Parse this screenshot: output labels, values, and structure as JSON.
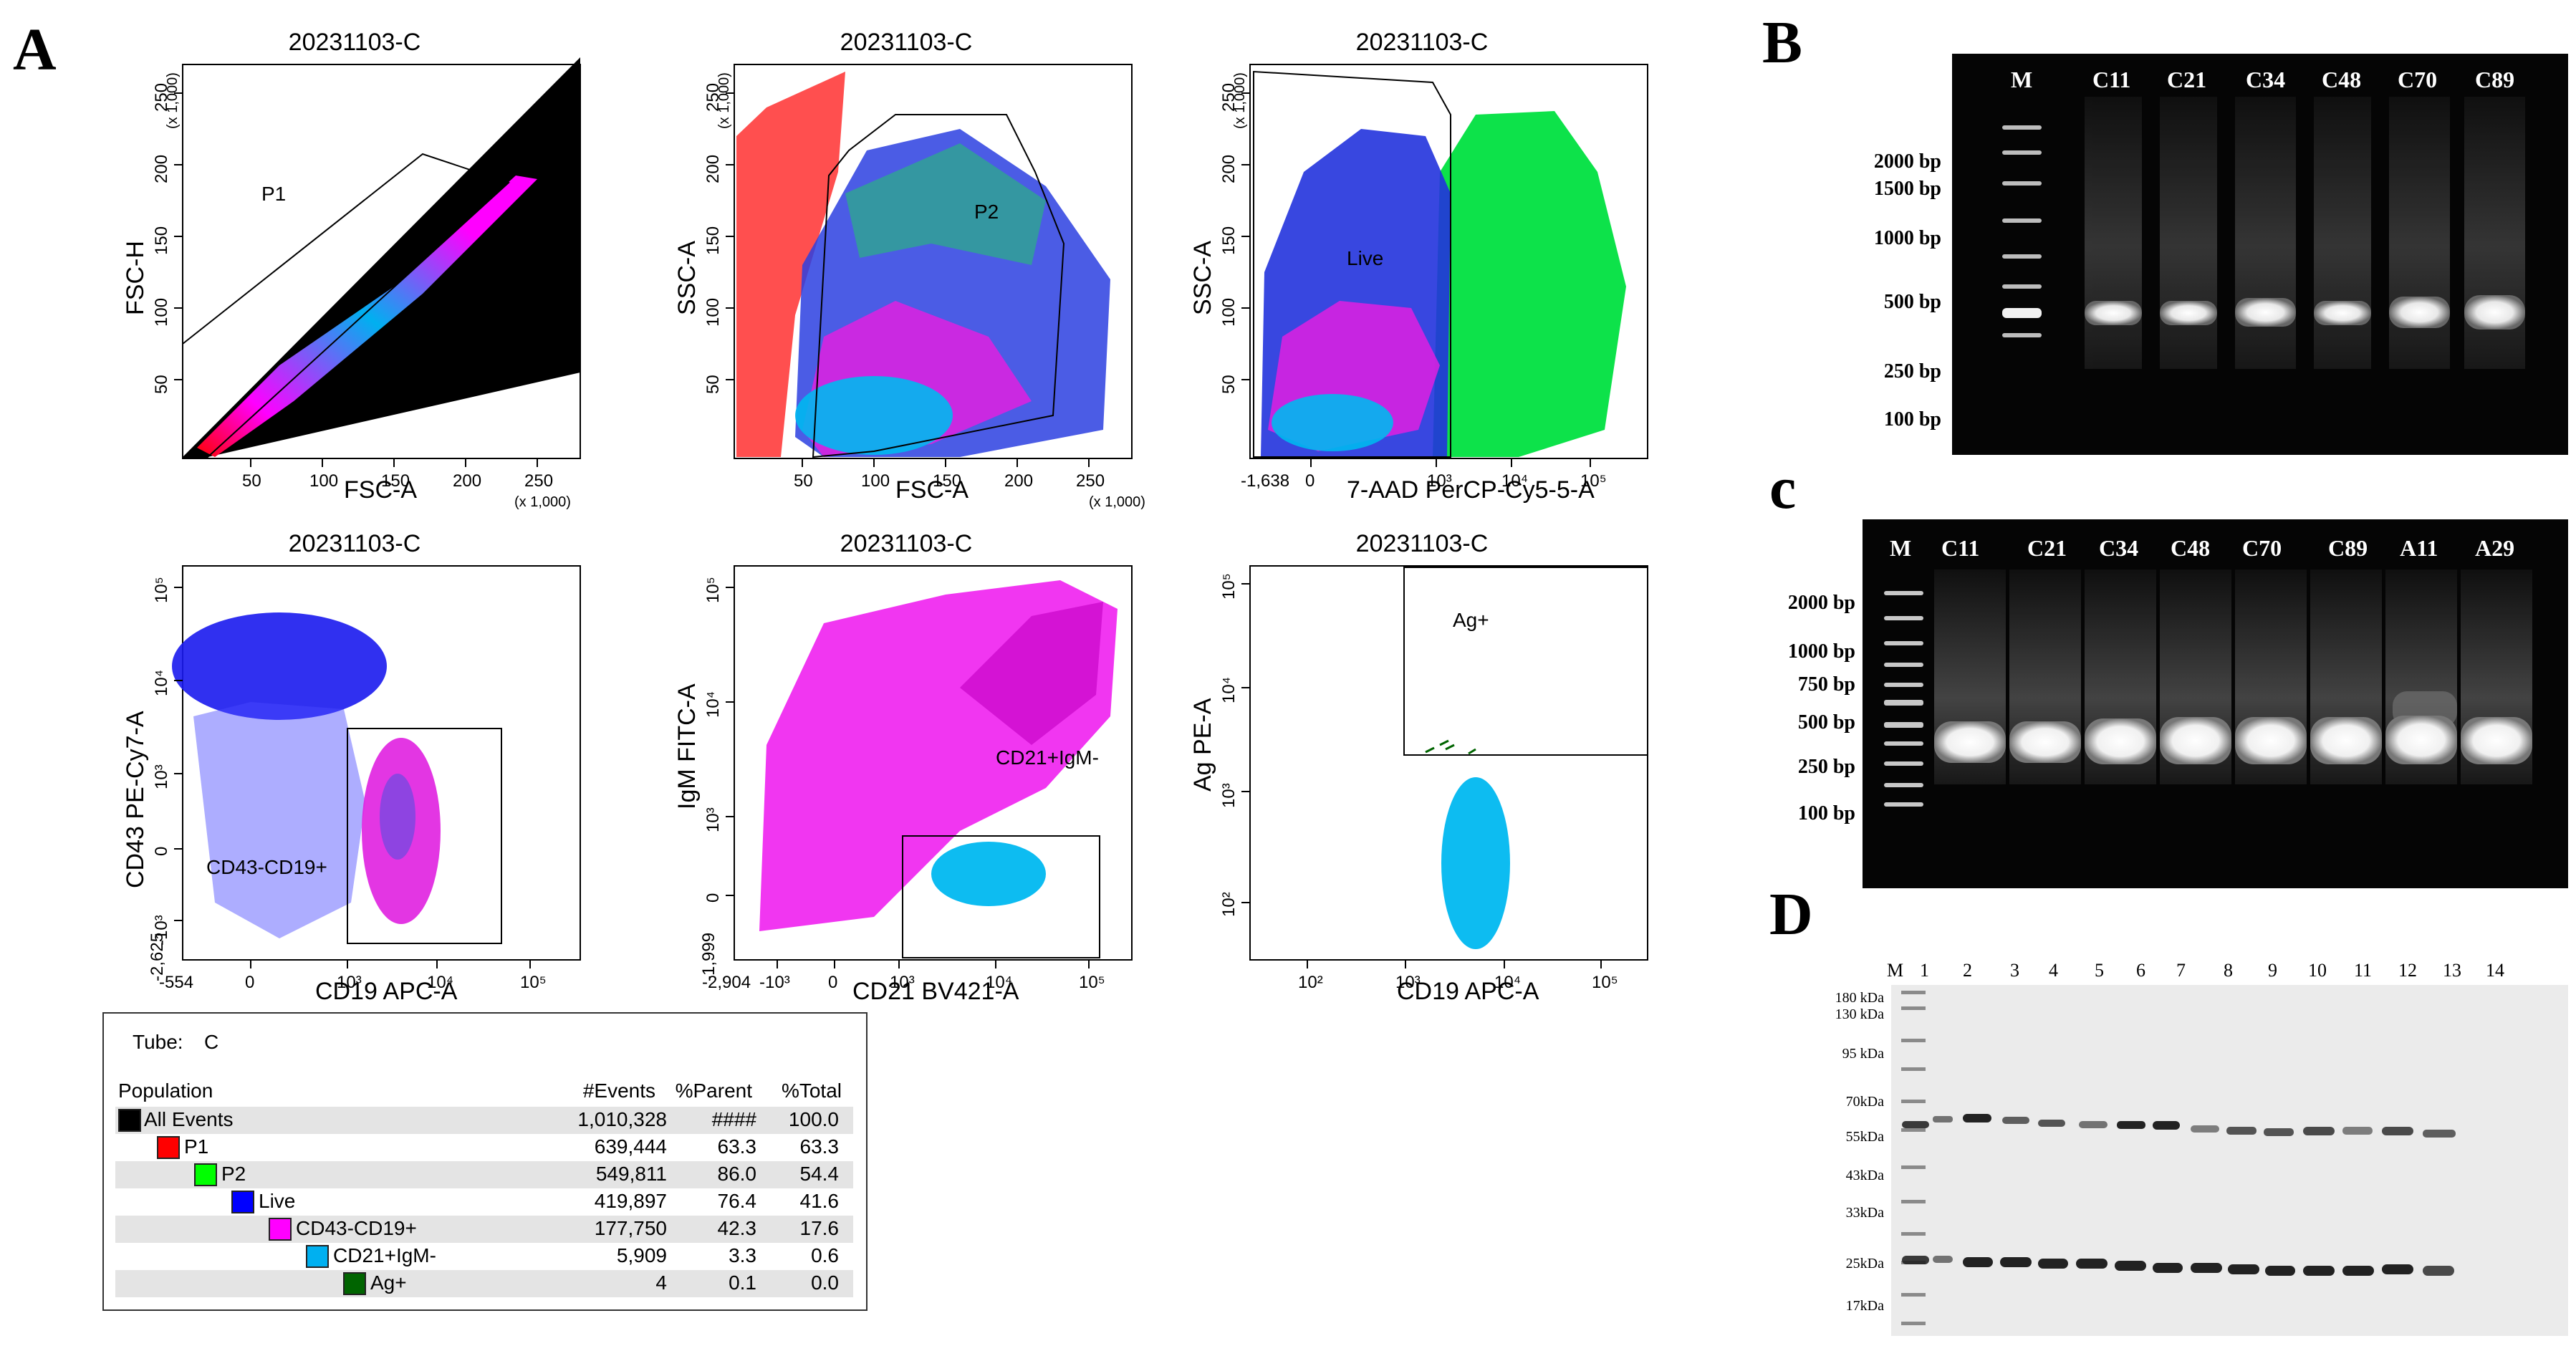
{
  "panel_letters": {
    "a": "A",
    "b": "B",
    "c": "c",
    "d": "D"
  },
  "plots": [
    {
      "title": "20231103-C",
      "xlabel": "FSC-A",
      "ylabel": "FSC-H",
      "xticks": [
        "50",
        "100",
        "150",
        "200",
        "250"
      ],
      "yticks": [
        "50",
        "100",
        "150",
        "200",
        "250"
      ],
      "xunit": "(x 1,000)",
      "yunit": "(x 1,000)",
      "gate": "P1"
    },
    {
      "title": "20231103-C",
      "xlabel": "FSC-A",
      "ylabel": "SSC-A",
      "xticks": [
        "50",
        "100",
        "150",
        "200",
        "250"
      ],
      "yticks": [
        "50",
        "100",
        "150",
        "200",
        "250"
      ],
      "xunit": "(x 1,000)",
      "yunit": "(x 1,000)",
      "gate": "P2"
    },
    {
      "title": "20231103-C",
      "xlabel": "7-AAD PerCP-Cy5-5-A",
      "ylabel": "SSC-A",
      "xticks": [
        "-1,638",
        "0",
        "10³",
        "10⁴",
        "10⁵"
      ],
      "yticks": [
        "50",
        "100",
        "150",
        "200",
        "250"
      ],
      "yunit": "(x 1,000)",
      "gate": "Live"
    },
    {
      "title": "20231103-C",
      "xlabel": "CD19 APC-A",
      "ylabel": "CD43 PE-Cy7-A",
      "xticks": [
        "-554",
        "0",
        "10³",
        "10⁴",
        "10⁵"
      ],
      "yticks": [
        "-2,625",
        "-10³",
        "0",
        "10³",
        "10⁴",
        "10⁵"
      ],
      "gate": "CD43-CD19+"
    },
    {
      "title": "20231103-C",
      "xlabel": "CD21 BV421-A",
      "ylabel": "IgM FITC-A",
      "xticks": [
        "-2,904",
        "-10³",
        "0",
        "10³",
        "10⁴",
        "10⁵"
      ],
      "yticks": [
        "-1,999",
        "0",
        "10³",
        "10⁴",
        "10⁵"
      ],
      "gate": "CD21+IgM-"
    },
    {
      "title": "20231103-C",
      "xlabel": "CD19 APC-A",
      "ylabel": "Ag PE-A",
      "xticks": [
        "10²",
        "10³",
        "10⁴",
        "10⁵"
      ],
      "yticks": [
        "10²",
        "10³",
        "10⁴",
        "10⁵"
      ],
      "gate": "Ag+"
    }
  ],
  "table": {
    "tube_label": "Tube:",
    "tube_value": "C",
    "headers": {
      "population": "Population",
      "events": "#Events",
      "parent": "%Parent",
      "total": "%Total"
    },
    "rows": [
      {
        "name": "All Events",
        "events": "1,010,328",
        "parent": "####",
        "total": "100.0",
        "color": "#000000"
      },
      {
        "name": "P1",
        "events": "639,444",
        "parent": "63.3",
        "total": "63.3",
        "color": "#ff0000"
      },
      {
        "name": "P2",
        "events": "549,811",
        "parent": "86.0",
        "total": "54.4",
        "color": "#00ff00"
      },
      {
        "name": "Live",
        "events": "419,897",
        "parent": "76.4",
        "total": "41.6",
        "color": "#0000ff"
      },
      {
        "name": "CD43-CD19+",
        "events": "177,750",
        "parent": "42.3",
        "total": "17.6",
        "color": "#ff00ff"
      },
      {
        "name": "CD21+IgM-",
        "events": "5,909",
        "parent": "3.3",
        "total": "0.6",
        "color": "#00b0f0"
      },
      {
        "name": "Ag+",
        "events": "4",
        "parent": "0.1",
        "total": "0.0",
        "color": "#006400"
      }
    ]
  },
  "gel_b": {
    "lanes": [
      "M",
      "C11",
      "C21",
      "C34",
      "C48",
      "C70",
      "C89"
    ],
    "markers": [
      "2000 bp",
      "1500 bp",
      "1000 bp",
      "500 bp",
      "250 bp",
      "100 bp"
    ]
  },
  "gel_c": {
    "lanes": [
      "M",
      "C11",
      "C21",
      "C34",
      "C48",
      "C70",
      "C89",
      "A11",
      "A29"
    ],
    "markers": [
      "2000 bp",
      "1000 bp",
      "750 bp",
      "500 bp",
      "250 bp",
      "100 bp"
    ]
  },
  "blot_d": {
    "lanes": [
      "M",
      "1",
      "2",
      "3",
      "4",
      "5",
      "6",
      "7",
      "8",
      "9",
      "10",
      "11",
      "12",
      "13",
      "14"
    ],
    "markers": [
      "180 kDa",
      "130 kDa",
      "95 kDa",
      "70kDa",
      "55kDa",
      "43kDa",
      "33kDa",
      "25kDa",
      "17kDa"
    ]
  }
}
